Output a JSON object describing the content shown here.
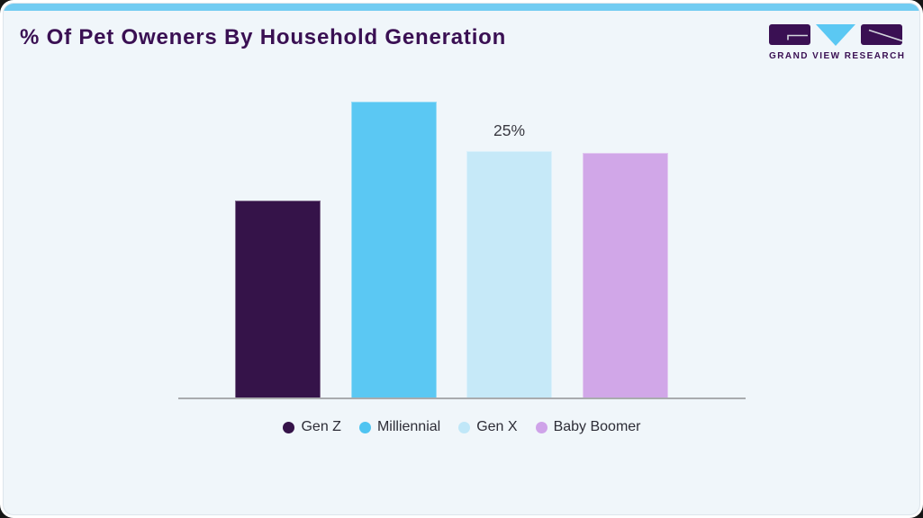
{
  "header": {
    "title": "% Of Pet Oweners By Household Generation"
  },
  "brand": {
    "name": "GRAND VIEW RESEARCH"
  },
  "chart_data": {
    "type": "bar",
    "title": "% Of Pet Oweners By Household Generation",
    "categories": [
      "Gen Z",
      "Milliennial",
      "Gen X",
      "Baby Boomer"
    ],
    "values": [
      20,
      30,
      25,
      24.8
    ],
    "unit": "%",
    "data_labels": [
      "",
      "",
      "25%",
      ""
    ],
    "bar_colors": [
      "#351349",
      "#5bc8f3",
      "#c6e9f8",
      "#d1a7e8"
    ],
    "xlabel": "",
    "ylabel": "",
    "y_axis_visible": false,
    "baseline_visible": true,
    "grid": false,
    "legend_position": "bottom",
    "legend": [
      {
        "label": "Gen Z",
        "color": "#351349"
      },
      {
        "label": "Milliennial",
        "color": "#4fc4f1"
      },
      {
        "label": "Gen X",
        "color": "#c0e7f8"
      },
      {
        "label": "Baby Boomer",
        "color": "#cfa3e9"
      }
    ]
  },
  "colors": {
    "accent_strip": "#72ccf2",
    "card_background": "#f0f6fa",
    "title_text": "#3a1053",
    "axis_line": "#a9abae",
    "data_label_text": "#3a3a42",
    "legend_text": "#2d2d37"
  }
}
